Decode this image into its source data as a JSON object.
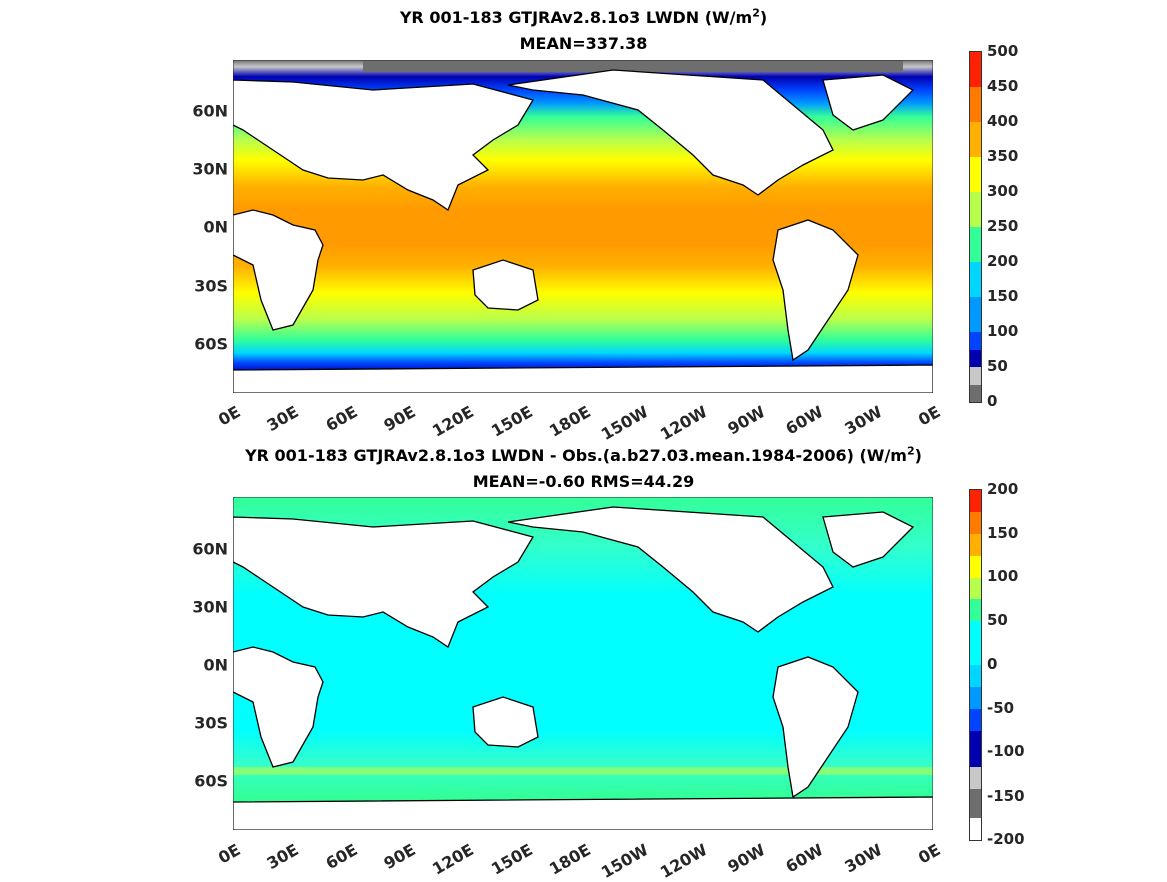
{
  "panels": [
    {
      "title_pre": "YR 001-183 GTJRAv2.8.1o3 LWDN (W/m",
      "title_sup": "2",
      "title_post": ")",
      "subtitle": "MEAN=337.38",
      "colorbar_ticks": [
        "500",
        "450",
        "400",
        "350",
        "300",
        "250",
        "200",
        "150",
        "100",
        "50",
        "0"
      ],
      "colorbar_colors": [
        "#ff2200",
        "#ff7a00",
        "#ffb000",
        "#ffff00",
        "#b8ff4d",
        "#33ff99",
        "#00d6ff",
        "#0099ff",
        "#0044ff",
        "#0000b0",
        "#c8c8c8",
        "#6e6e6e"
      ]
    },
    {
      "title_pre": "YR 001-183 GTJRAv2.8.1o3 LWDN - Obs.(a.b27.03.mean.1984-2006) (W/m",
      "title_sup": "2",
      "title_post": ")",
      "subtitle": "MEAN=-0.60 RMS=44.29",
      "colorbar_ticks": [
        "200",
        "150",
        "100",
        "50",
        "0",
        "-50",
        "-100",
        "-150",
        "-200"
      ],
      "colorbar_colors": [
        "#ff2200",
        "#ff7a00",
        "#ffb000",
        "#ffff00",
        "#b8ff4d",
        "#33ff99",
        "#00ffff",
        "#00d6ff",
        "#0099ff",
        "#0044ff",
        "#0000b0",
        "#c8c8c8",
        "#6e6e6e"
      ]
    }
  ],
  "lat_labels": [
    "60N",
    "30N",
    "0N",
    "30S",
    "60S"
  ],
  "lon_labels": [
    "0E",
    "30E",
    "60E",
    "90E",
    "120E",
    "150E",
    "180E",
    "150W",
    "120W",
    "90W",
    "60W",
    "30W",
    "0E"
  ],
  "colors": {
    "land": "#ffffff",
    "coast": "#000000",
    "ice": "#c8c8c8"
  }
}
